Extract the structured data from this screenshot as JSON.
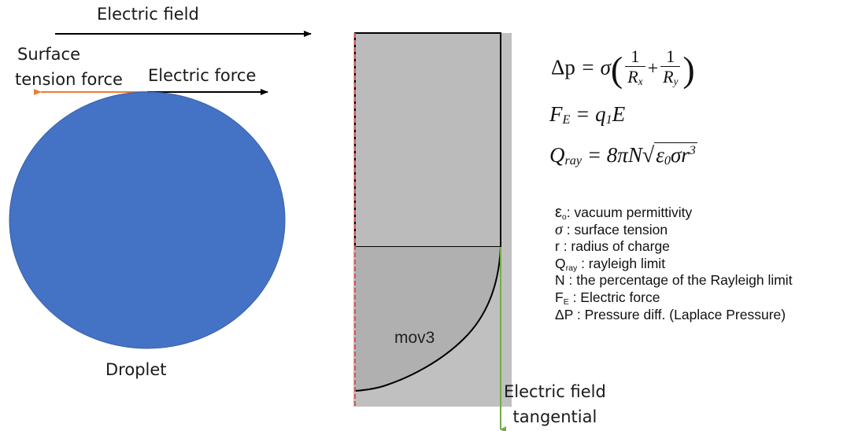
{
  "left_panel": {
    "electric_field_label": "Electric field",
    "surface_tension_label": [
      "Surface",
      "tension force"
    ],
    "electric_force_label": "Electric force",
    "droplet_label": "Droplet",
    "droplet_color": "#4472C4",
    "surface_tension_arrow_color": "#ED7D31"
  },
  "simulation_panel": {
    "region_label": "mov3",
    "tangent_label": [
      "Electric field",
      "tangential"
    ],
    "background_color": "#C0C0C0",
    "region_color": "#B0B0B0",
    "tangent_line_color": "#70AD47",
    "boundary_color": "#E05050"
  },
  "equations": {
    "laplace": {
      "lhs": "Δp",
      "eq": " = σ",
      "num1": "1",
      "den1": "R",
      "sub1": "x",
      "num2": "1",
      "den2": "R",
      "sub2": "y"
    },
    "force": {
      "lhs": "F",
      "lhs_sub": "E",
      "rhs": " = q",
      "rhs_sub": "1",
      "rhs2": "E"
    },
    "rayleigh": {
      "lhs": "Q",
      "lhs_sub": "ray",
      "rhs": " = 8πN",
      "rad1": "ε",
      "rad1_sub": "0",
      "rad2": "σr",
      "rad2_sup": "3"
    }
  },
  "legend": [
    {
      "sym": "ε",
      "sub": "o",
      "text": ": vacuum permittivity"
    },
    {
      "sym": "σ",
      "sub": "",
      "text": " : surface tension"
    },
    {
      "sym": " r",
      "sub": "",
      "text": "  : radius of charge"
    },
    {
      "sym": "Q",
      "sub": "ray",
      "text": " : rayleigh limit"
    },
    {
      "sym": "N",
      "sub": "",
      "text": " : the percentage of the Rayleigh limit"
    },
    {
      "sym": "F",
      "sub": "E",
      "text": " : Electric force"
    },
    {
      "sym": "ΔP",
      "sub": "",
      "text": " : Pressure diff. (Laplace Pressure)"
    }
  ]
}
